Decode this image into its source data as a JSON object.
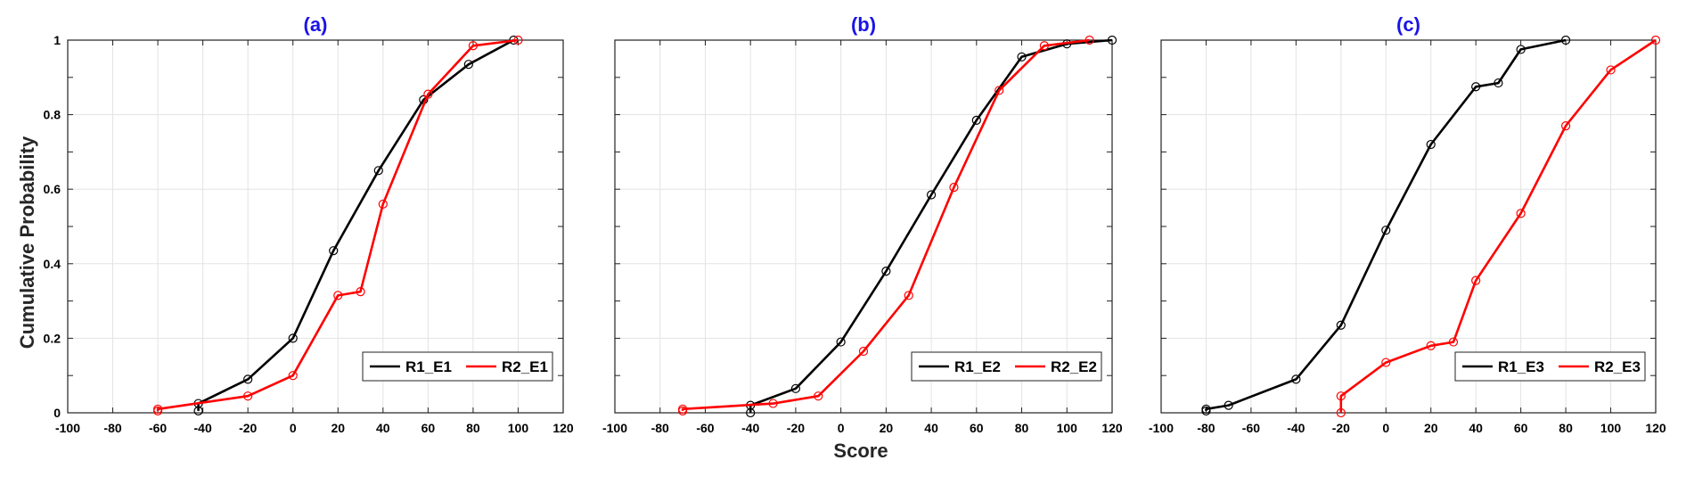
{
  "figure": {
    "xlabel": "Score",
    "ylabel": "Cumulative Probability"
  },
  "chart_data": [
    {
      "type": "line",
      "title": "(a)",
      "xlim": [
        -100,
        120
      ],
      "ylim": [
        0,
        1
      ],
      "xticks": [
        "-100",
        "-80",
        "-60",
        "-40",
        "-20",
        "0",
        "20",
        "40",
        "60",
        "80",
        "100",
        "120"
      ],
      "yticks": [
        "0",
        "0.2",
        "0.4",
        "0.6",
        "0.8",
        "1"
      ],
      "grid": true,
      "legend": "bottom-right",
      "series": [
        {
          "name": "R1_E1",
          "color": "#000000",
          "x": [
            -42,
            -42,
            -20,
            0,
            18,
            38,
            58,
            78,
            98
          ],
          "y": [
            0.005,
            0.025,
            0.09,
            0.2,
            0.435,
            0.65,
            0.84,
            0.935,
            1.0
          ]
        },
        {
          "name": "R2_E1",
          "color": "#ff0000",
          "x": [
            -60,
            -60,
            -20,
            0,
            20,
            30,
            40,
            60,
            80,
            100
          ],
          "y": [
            0.005,
            0.01,
            0.045,
            0.1,
            0.315,
            0.325,
            0.56,
            0.855,
            0.985,
            1.0
          ]
        }
      ]
    },
    {
      "type": "line",
      "title": "(b)",
      "xlim": [
        -100,
        120
      ],
      "ylim": [
        0,
        1
      ],
      "xticks": [
        "-100",
        "-80",
        "-60",
        "-40",
        "-20",
        "0",
        "20",
        "40",
        "60",
        "80",
        "100",
        "120"
      ],
      "yticks": [
        "0",
        "0.2",
        "0.4",
        "0.6",
        "0.8",
        "1"
      ],
      "grid": true,
      "legend": "bottom-right",
      "series": [
        {
          "name": "R1_E2",
          "color": "#000000",
          "x": [
            -40,
            -40,
            -20,
            0,
            20,
            40,
            60,
            80,
            100,
            120
          ],
          "y": [
            0.0,
            0.02,
            0.065,
            0.19,
            0.38,
            0.585,
            0.785,
            0.955,
            0.99,
            1.0
          ]
        },
        {
          "name": "R2_E2",
          "color": "#ff0000",
          "x": [
            -70,
            -70,
            -30,
            -10,
            10,
            30,
            50,
            70,
            90,
            110
          ],
          "y": [
            0.005,
            0.01,
            0.025,
            0.045,
            0.165,
            0.315,
            0.605,
            0.865,
            0.985,
            1.0
          ]
        }
      ]
    },
    {
      "type": "line",
      "title": "(c)",
      "xlim": [
        -100,
        120
      ],
      "ylim": [
        0,
        1
      ],
      "xticks": [
        "-100",
        "-80",
        "-60",
        "-40",
        "-20",
        "0",
        "20",
        "40",
        "60",
        "80",
        "100",
        "120"
      ],
      "yticks": [
        "0",
        "0.2",
        "0.4",
        "0.6",
        "0.8",
        "1"
      ],
      "grid": true,
      "legend": "bottom-right",
      "series": [
        {
          "name": "R1_E3",
          "color": "#000000",
          "x": [
            -80,
            -80,
            -70,
            -40,
            -20,
            0,
            20,
            40,
            50,
            60,
            80
          ],
          "y": [
            0.005,
            0.01,
            0.02,
            0.09,
            0.235,
            0.49,
            0.72,
            0.875,
            0.885,
            0.975,
            1.0
          ]
        },
        {
          "name": "R2_E3",
          "color": "#ff0000",
          "x": [
            -20,
            -20,
            0,
            20,
            30,
            40,
            60,
            80,
            100,
            120
          ],
          "y": [
            0.0,
            0.045,
            0.135,
            0.18,
            0.19,
            0.355,
            0.535,
            0.77,
            0.92,
            1.0
          ]
        }
      ]
    }
  ]
}
